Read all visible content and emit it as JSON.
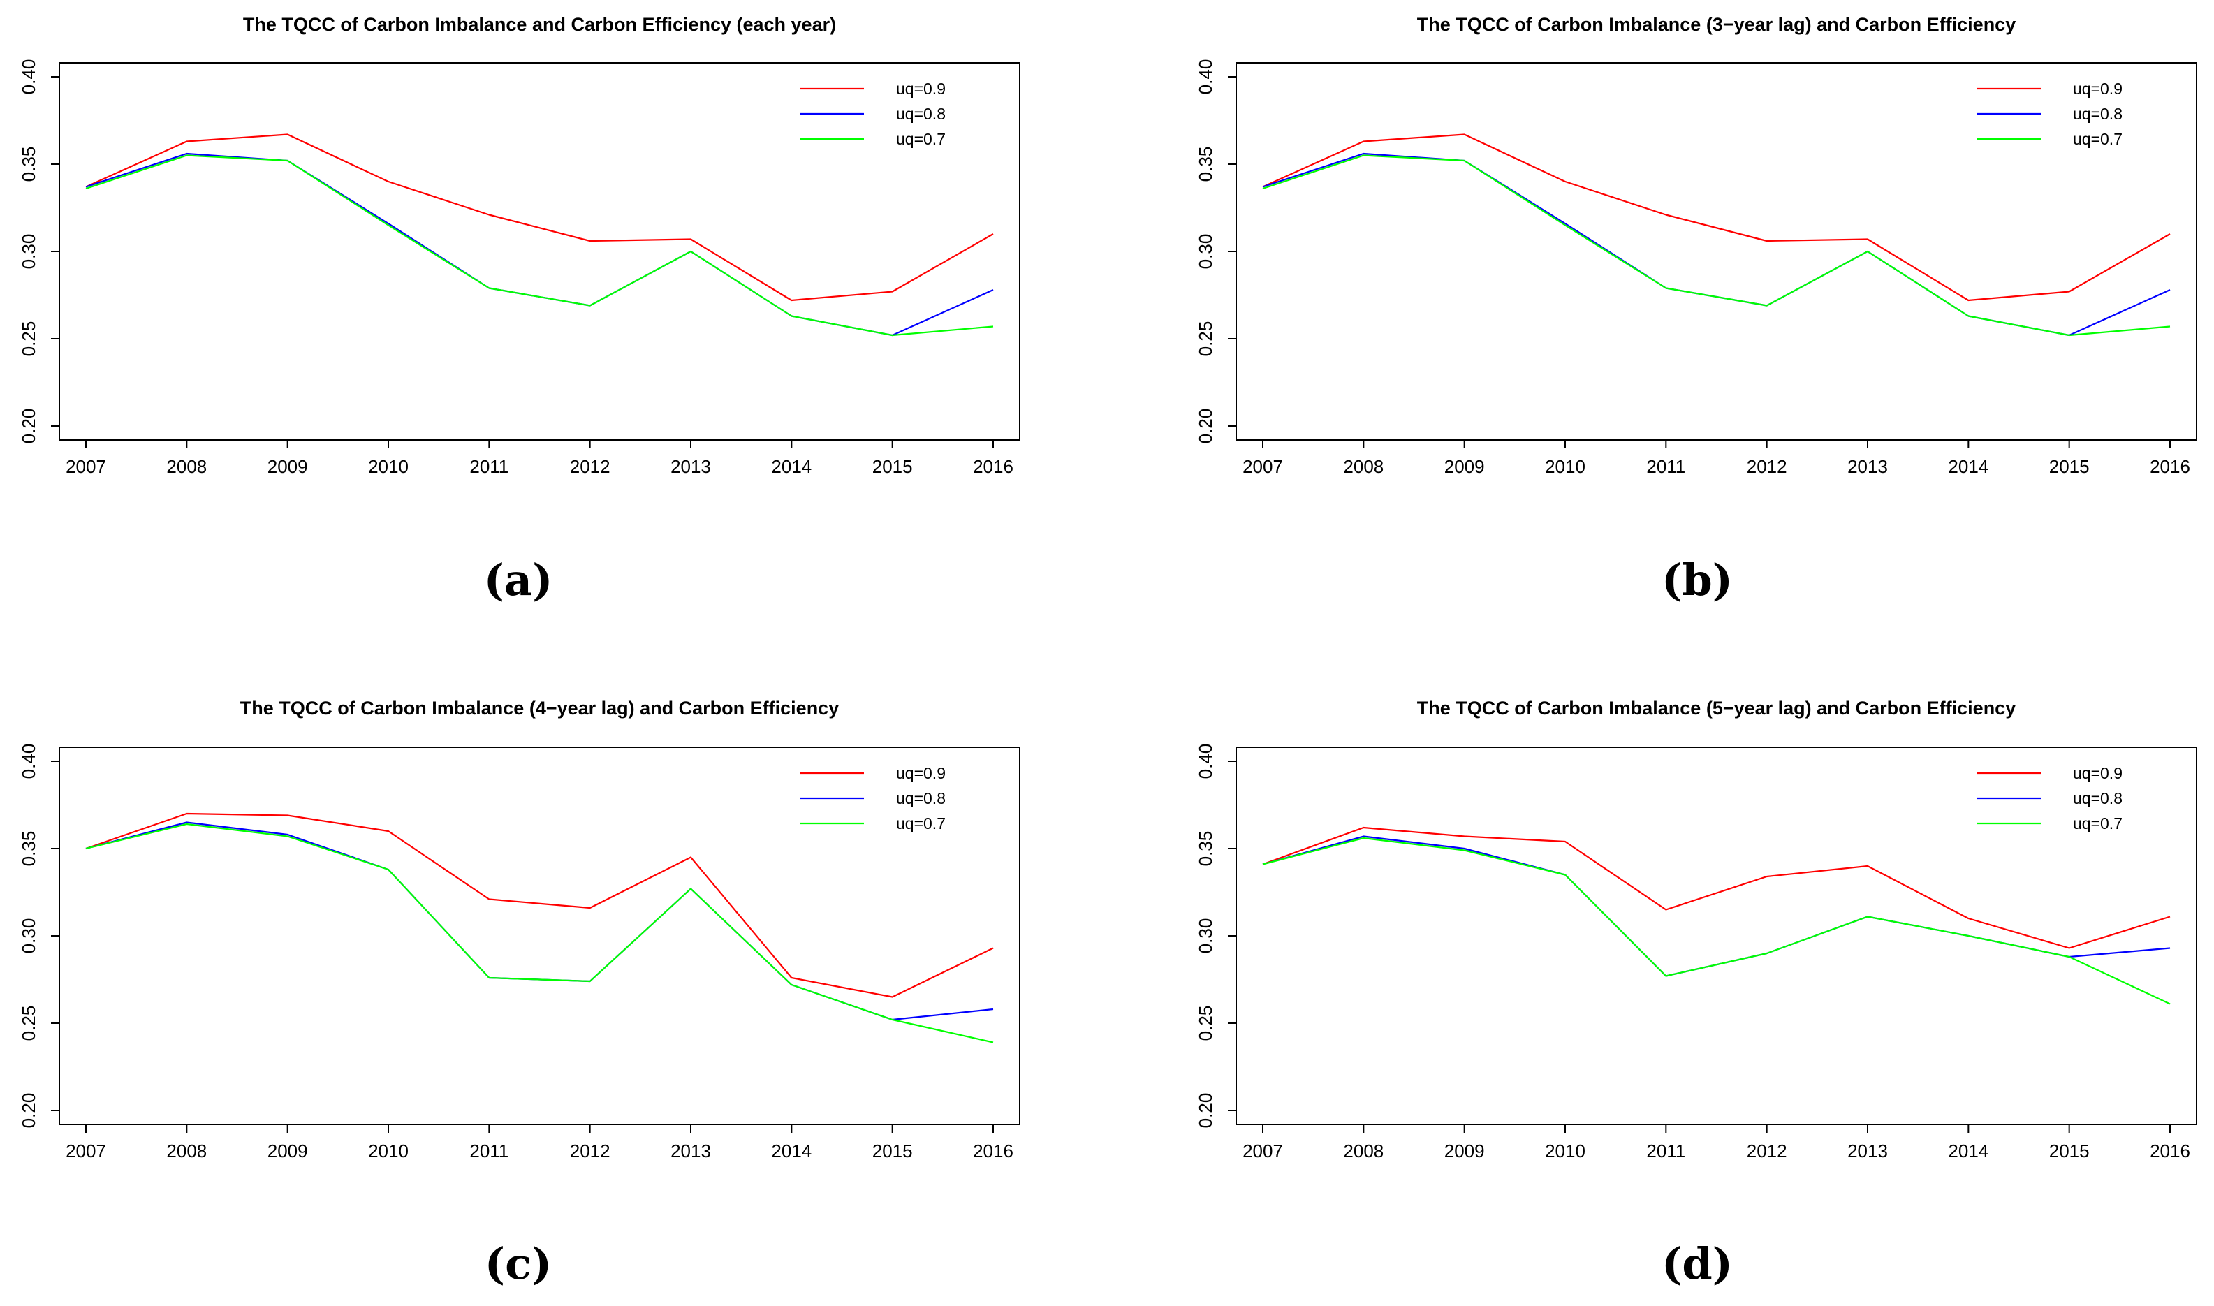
{
  "figure": {
    "background": "#FFFFFF",
    "axis_color": "#000000",
    "series_colors": {
      "uq09": "#FF0000",
      "uq08": "#0000FF",
      "uq07": "#00FF00"
    }
  },
  "chart_data": [
    {
      "id": "a",
      "type": "line",
      "panel_label": "(a)",
      "title": "The TQCC of Carbon Imbalance and Carbon Efficiency (each year)",
      "x": [
        2007,
        2008,
        2009,
        2010,
        2011,
        2012,
        2013,
        2014,
        2015,
        2016
      ],
      "ylim": [
        0.2,
        0.4
      ],
      "yticks": [
        0.2,
        0.25,
        0.3,
        0.35,
        0.4
      ],
      "grid": false,
      "legend_position": "top-right",
      "series": [
        {
          "name": "uq=0.9",
          "color": "#FF0000",
          "values": [
            0.337,
            0.363,
            0.367,
            0.34,
            0.321,
            0.306,
            0.307,
            0.272,
            0.277,
            0.31
          ]
        },
        {
          "name": "uq=0.8",
          "color": "#0000FF",
          "values": [
            0.337,
            0.356,
            0.352,
            0.316,
            0.279,
            0.269,
            0.3,
            0.263,
            0.252,
            0.278
          ]
        },
        {
          "name": "uq=0.7",
          "color": "#00FF00",
          "values": [
            0.336,
            0.355,
            0.352,
            0.315,
            0.279,
            0.269,
            0.3,
            0.263,
            0.252,
            0.257
          ]
        }
      ]
    },
    {
      "id": "b",
      "type": "line",
      "panel_label": "(b)",
      "title": "The TQCC of Carbon Imbalance (3−year lag) and Carbon Efficiency",
      "x": [
        2007,
        2008,
        2009,
        2010,
        2011,
        2012,
        2013,
        2014,
        2015,
        2016
      ],
      "ylim": [
        0.2,
        0.4
      ],
      "yticks": [
        0.2,
        0.25,
        0.3,
        0.35,
        0.4
      ],
      "grid": false,
      "legend_position": "top-right",
      "series": [
        {
          "name": "uq=0.9",
          "color": "#FF0000",
          "values": [
            0.337,
            0.363,
            0.367,
            0.34,
            0.321,
            0.306,
            0.307,
            0.272,
            0.277,
            0.31
          ]
        },
        {
          "name": "uq=0.8",
          "color": "#0000FF",
          "values": [
            0.337,
            0.356,
            0.352,
            0.316,
            0.279,
            0.269,
            0.3,
            0.263,
            0.252,
            0.278
          ]
        },
        {
          "name": "uq=0.7",
          "color": "#00FF00",
          "values": [
            0.336,
            0.355,
            0.352,
            0.315,
            0.279,
            0.269,
            0.3,
            0.263,
            0.252,
            0.257
          ]
        }
      ]
    },
    {
      "id": "c",
      "type": "line",
      "panel_label": "(c)",
      "title": "The TQCC of Carbon Imbalance (4−year lag) and Carbon Efficiency",
      "x": [
        2007,
        2008,
        2009,
        2010,
        2011,
        2012,
        2013,
        2014,
        2015,
        2016
      ],
      "ylim": [
        0.2,
        0.4
      ],
      "yticks": [
        0.2,
        0.25,
        0.3,
        0.35,
        0.4
      ],
      "grid": false,
      "legend_position": "top-right",
      "series": [
        {
          "name": "uq=0.9",
          "color": "#FF0000",
          "values": [
            0.35,
            0.37,
            0.369,
            0.36,
            0.321,
            0.316,
            0.345,
            0.276,
            0.265,
            0.293
          ]
        },
        {
          "name": "uq=0.8",
          "color": "#0000FF",
          "values": [
            0.35,
            0.365,
            0.358,
            0.338,
            0.276,
            0.274,
            0.327,
            0.272,
            0.252,
            0.258
          ]
        },
        {
          "name": "uq=0.7",
          "color": "#00FF00",
          "values": [
            0.35,
            0.364,
            0.357,
            0.338,
            0.276,
            0.274,
            0.327,
            0.272,
            0.252,
            0.239
          ]
        }
      ]
    },
    {
      "id": "d",
      "type": "line",
      "panel_label": "(d)",
      "title": "The TQCC of Carbon Imbalance (5−year lag) and Carbon Efficiency",
      "x": [
        2007,
        2008,
        2009,
        2010,
        2011,
        2012,
        2013,
        2014,
        2015,
        2016
      ],
      "ylim": [
        0.2,
        0.4
      ],
      "yticks": [
        0.2,
        0.25,
        0.3,
        0.35,
        0.4
      ],
      "grid": false,
      "legend_position": "top-right",
      "series": [
        {
          "name": "uq=0.9",
          "color": "#FF0000",
          "values": [
            0.341,
            0.362,
            0.357,
            0.354,
            0.315,
            0.334,
            0.34,
            0.31,
            0.293,
            0.311
          ]
        },
        {
          "name": "uq=0.8",
          "color": "#0000FF",
          "values": [
            0.341,
            0.357,
            0.35,
            0.335,
            0.277,
            0.29,
            0.311,
            0.3,
            0.288,
            0.293
          ]
        },
        {
          "name": "uq=0.7",
          "color": "#00FF00",
          "values": [
            0.341,
            0.356,
            0.349,
            0.335,
            0.277,
            0.29,
            0.311,
            0.3,
            0.288,
            0.261
          ]
        }
      ]
    }
  ]
}
